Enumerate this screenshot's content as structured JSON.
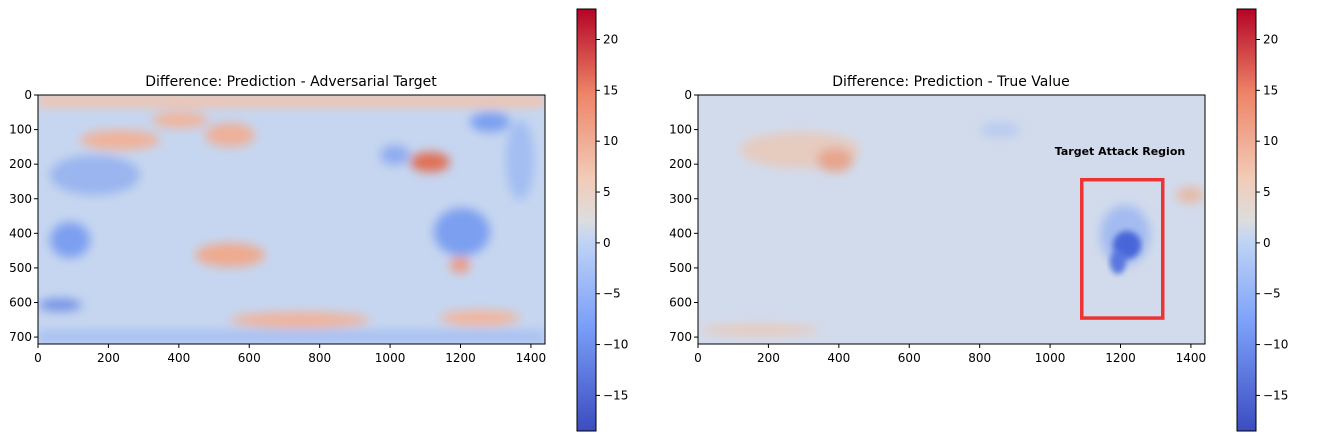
{
  "chart_data": [
    {
      "type": "heatmap",
      "title": "Difference: Prediction - Adversarial Target",
      "xlabel": "",
      "ylabel": "",
      "xlim": [
        0,
        1440
      ],
      "ylim": [
        720,
        0
      ],
      "x_ticks": [
        "0",
        "200",
        "400",
        "600",
        "800",
        "1000",
        "1200",
        "1400"
      ],
      "y_ticks": [
        "0",
        "100",
        "200",
        "300",
        "400",
        "500",
        "600",
        "700"
      ],
      "colormap": "coolwarm",
      "colorbar": {
        "range": [
          -18.5,
          23
        ],
        "ticks": [
          "−15",
          "−10",
          "−5",
          "0",
          "5",
          "10",
          "15",
          "20"
        ]
      }
    },
    {
      "type": "heatmap",
      "title": "Difference: Prediction - True Value",
      "xlabel": "",
      "ylabel": "",
      "xlim": [
        0,
        1440
      ],
      "ylim": [
        720,
        0
      ],
      "x_ticks": [
        "0",
        "200",
        "400",
        "600",
        "800",
        "1000",
        "1200",
        "1400"
      ],
      "y_ticks": [
        "0",
        "100",
        "200",
        "300",
        "400",
        "500",
        "600",
        "700"
      ],
      "colormap": "coolwarm",
      "colorbar": {
        "range": [
          -18.5,
          23
        ],
        "ticks": [
          "−15",
          "−10",
          "−5",
          "0",
          "5",
          "10",
          "15",
          "20"
        ]
      },
      "annotation": {
        "text": "Target Attack Region",
        "box": {
          "x0": 1090,
          "x1": 1320,
          "y0": 245,
          "y1": 645
        },
        "color": "#ee3333"
      }
    }
  ]
}
